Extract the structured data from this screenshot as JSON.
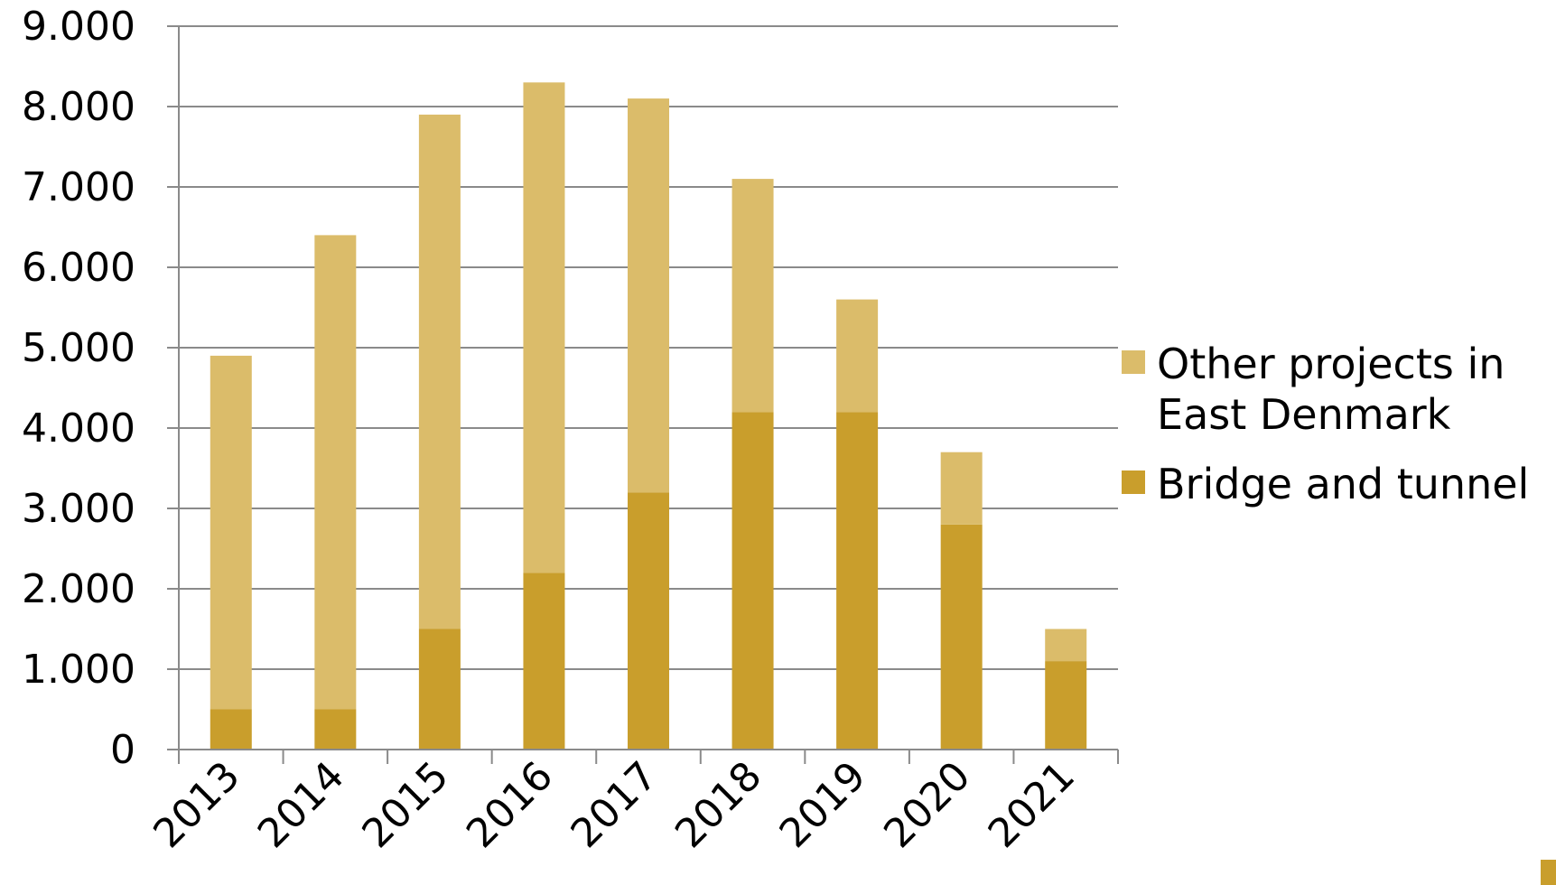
{
  "chart_data": {
    "type": "bar",
    "stacked": true,
    "categories": [
      "2013",
      "2014",
      "2015",
      "2016",
      "2017",
      "2018",
      "2019",
      "2020",
      "2021"
    ],
    "series": [
      {
        "name": "Bridge and tunnel",
        "values": [
          500,
          500,
          1500,
          2200,
          3200,
          4200,
          4200,
          2800,
          1100
        ],
        "color": "#C99E2C"
      },
      {
        "name": "Other projects in East Denmark",
        "values": [
          4400,
          5900,
          6400,
          6100,
          4900,
          2900,
          1400,
          900,
          400
        ],
        "color": "#DBBC6A"
      }
    ],
    "y_ticks": [
      "0",
      "1.000",
      "2.000",
      "3.000",
      "4.000",
      "5.000",
      "6.000",
      "7.000",
      "8.000",
      "9.000"
    ],
    "ylim": [
      0,
      9000
    ],
    "grid": true,
    "legend_position": "right",
    "legend": [
      {
        "lines": [
          "Other projects in",
          "East Denmark"
        ],
        "color": "#DBBC6A"
      },
      {
        "lines": [
          "Bridge and tunnel"
        ],
        "color": "#C99E2C"
      }
    ]
  }
}
